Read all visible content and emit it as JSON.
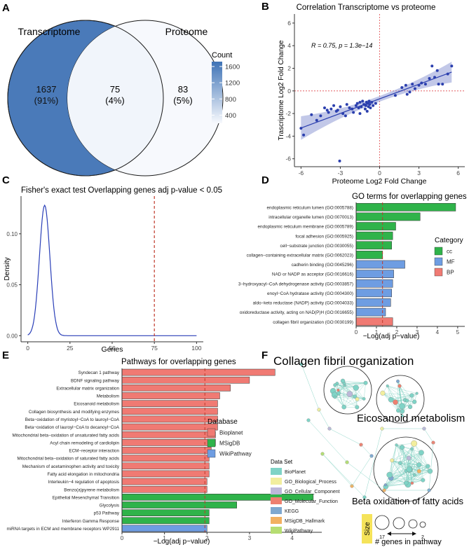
{
  "panel_labels": {
    "A": "A",
    "B": "B",
    "C": "C",
    "D": "D",
    "E": "E",
    "F": "F"
  },
  "chart_data": [
    {
      "panel": "A",
      "type": "venn",
      "sets": [
        "Transcriptome",
        "Proteome"
      ],
      "regions": [
        {
          "set": "Transcriptome only",
          "count": 1637,
          "pct": "(91%)",
          "color": "#4a7ab9"
        },
        {
          "set": "Both",
          "count": 75,
          "pct": "(4%)",
          "color": "#f1f5fb"
        },
        {
          "set": "Proteome only",
          "count": 83,
          "pct": "(5%)",
          "color": "#f7f9fd"
        }
      ],
      "legend": {
        "title": "Count",
        "ticks": [
          1600,
          1200,
          800,
          400
        ],
        "low_color": "#f7f9fd",
        "high_color": "#3f73b6"
      }
    },
    {
      "panel": "B",
      "type": "scatter",
      "title": "Correlation Transcriptome vs proteome",
      "xlabel": "Proteome Log2 Fold Change",
      "ylabel": "Trascriptome Log2 Fold Change",
      "xlim": [
        -6.5,
        6.5
      ],
      "ylim": [
        -6.7,
        6.8
      ],
      "xticks": [
        -6,
        -3,
        0,
        3,
        6
      ],
      "yticks": [
        -6,
        -4,
        -2,
        0,
        2,
        4,
        6
      ],
      "annotation": "R = 0.75, p = 1.3e−14",
      "fit": {
        "slope": 0.43,
        "intercept": -0.7
      },
      "points": [
        [
          -6,
          -3.3
        ],
        [
          -5.8,
          -3.9
        ],
        [
          -5.2,
          -2.1
        ],
        [
          -4.8,
          -2.6
        ],
        [
          -4.5,
          -2.2
        ],
        [
          -4.2,
          -1.5
        ],
        [
          -4,
          -1.7
        ],
        [
          -3.9,
          -1.9
        ],
        [
          -3.7,
          -1.6
        ],
        [
          -3.5,
          -1.3
        ],
        [
          -3.3,
          -1.8
        ],
        [
          -3.2,
          -1.7
        ],
        [
          -3.05,
          -6.2
        ],
        [
          -3,
          -1.4
        ],
        [
          -2.8,
          -2
        ],
        [
          -2.6,
          -2.2
        ],
        [
          -2.5,
          -1.2
        ],
        [
          -2.3,
          -1.5
        ],
        [
          -2.1,
          -1.6
        ],
        [
          -2,
          -1.9
        ],
        [
          -1.8,
          -1.3
        ],
        [
          -1.7,
          -1.1
        ],
        [
          -1.6,
          -1.5
        ],
        [
          -1.5,
          -1
        ],
        [
          -1.5,
          -2
        ],
        [
          -1.4,
          -1.4
        ],
        [
          -1.3,
          -0.9
        ],
        [
          -1.2,
          -1.2
        ],
        [
          -1.1,
          -1.6
        ],
        [
          -1.05,
          -1.3
        ],
        [
          -1,
          -1
        ],
        [
          -0.95,
          -1.8
        ],
        [
          -0.9,
          -1.1
        ],
        [
          -0.85,
          -1.4
        ],
        [
          -0.8,
          -0.9
        ],
        [
          -0.75,
          -1.2
        ],
        [
          -0.7,
          -1.5
        ],
        [
          -0.6,
          -1
        ],
        [
          -0.5,
          -1.3
        ],
        [
          -0.3,
          -1.1
        ],
        [
          1.2,
          -0.4
        ],
        [
          1.7,
          0.3
        ],
        [
          2,
          0.5
        ],
        [
          2.1,
          -0.3
        ],
        [
          2.3,
          -0.1
        ],
        [
          2.5,
          0.6
        ],
        [
          2.7,
          0.2
        ],
        [
          3,
          0.5
        ],
        [
          3.2,
          0.7
        ],
        [
          3.5,
          0.6
        ],
        [
          3.8,
          1.1
        ],
        [
          4,
          2.2
        ],
        [
          4.2,
          1.2
        ],
        [
          4.5,
          0.6
        ],
        [
          4.8,
          0.6
        ],
        [
          5.2,
          1.5
        ],
        [
          5.5,
          2.2
        ],
        [
          4.4,
          1.8
        ]
      ]
    },
    {
      "panel": "C",
      "type": "line",
      "title": "Fisher's exact test Overlapping genes adj p-value < 0.05",
      "xlabel": "Genes",
      "ylabel": "Density",
      "xlim": [
        -4,
        104
      ],
      "ylim": [
        -0.006,
        0.137
      ],
      "xticks": [
        0,
        25,
        50,
        75,
        100
      ],
      "yticks": [
        0,
        0.05,
        0.1
      ],
      "yticklabels": [
        "0.00",
        "0.05",
        "0.10"
      ],
      "density_peak_x": 10,
      "density_peak_y": 0.128,
      "density_sd": 3.1,
      "vline_x": 75
    },
    {
      "panel": "D",
      "type": "bar",
      "orientation": "horizontal",
      "title": "GO terms for overlapping genes",
      "xlabel": "−Log(adj p−value)",
      "xlim": [
        0,
        5.35
      ],
      "xticks": [
        0,
        1,
        2,
        3,
        4,
        5
      ],
      "vline_x": 1.3,
      "legend_title": "Category",
      "legend": [
        {
          "name": "cc",
          "color": "#2fb34a"
        },
        {
          "name": "MF",
          "color": "#6e9de2"
        },
        {
          "name": "BP",
          "color": "#f07a73"
        }
      ],
      "bars": [
        {
          "label": "endoplasmic reticulum lumen (GO:0005788)",
          "value": 4.9,
          "category": "cc"
        },
        {
          "label": "intracellular organelle lumen (GO:0070013)",
          "value": 3.15,
          "category": "cc"
        },
        {
          "label": "endoplasmic reticulum membrane (GO:0005789)",
          "value": 1.95,
          "category": "cc"
        },
        {
          "label": "focal adhesion (GO:0005925)",
          "value": 1.8,
          "category": "cc"
        },
        {
          "label": "cell−substrate junction (GO:0030055)",
          "value": 1.75,
          "category": "cc"
        },
        {
          "label": "collagen−containing extracellular matrix (GO:0062023)",
          "value": 1.3,
          "category": "cc"
        },
        {
          "label": "cadherin binding (GO:0045296)",
          "value": 2.4,
          "category": "MF"
        },
        {
          "label": "NAD or NADP as acceptor (GO:0016616)",
          "value": 1.85,
          "category": "MF"
        },
        {
          "label": "3−hydroxyacyl−CoA dehydrogenase activity (GO:0003857)",
          "value": 1.8,
          "category": "MF"
        },
        {
          "label": "enoyl−CoA hydratase activity (GO:0004300)",
          "value": 1.75,
          "category": "MF"
        },
        {
          "label": "aldo−keto reductase (NADP) activity (GO:0004033)",
          "value": 1.7,
          "category": "MF"
        },
        {
          "label": "oxidoreductase activity, acting on NAD(P)H (GO:0016655)",
          "value": 1.45,
          "category": "MF"
        },
        {
          "label": "collagen fibril organization (GO:0030199)",
          "value": 1.8,
          "category": "BP"
        }
      ]
    },
    {
      "panel": "E",
      "type": "bar",
      "orientation": "horizontal",
      "title": "Pathways for overlapping genes",
      "xlabel": "−Log(adj p−value)",
      "xlim": [
        0,
        4.7
      ],
      "xticks": [
        0,
        1,
        2,
        3,
        4
      ],
      "vline_x": 1.95,
      "legend_title": "Database",
      "legend": [
        {
          "name": "Bioplanet",
          "color": "#f07a73"
        },
        {
          "name": "MSigDB",
          "color": "#2fb34a"
        },
        {
          "name": "WikiPathway",
          "color": "#6e9de2"
        }
      ],
      "bars": [
        {
          "label": "Syndecan 1 pathway",
          "value": 3.6,
          "category": "Bioplanet"
        },
        {
          "label": "BDNF signaling pathway",
          "value": 3.0,
          "category": "Bioplanet"
        },
        {
          "label": "Extracellular matrix organization",
          "value": 2.55,
          "category": "Bioplanet"
        },
        {
          "label": "Metabolism",
          "value": 2.3,
          "category": "Bioplanet"
        },
        {
          "label": "Eicosanoid metabolism",
          "value": 2.25,
          "category": "Bioplanet"
        },
        {
          "label": "Collagen biosynthesis and modifying enzymes",
          "value": 2.25,
          "category": "Bioplanet"
        },
        {
          "label": "Beta−oxidation of myristoyl−CoA to lauroyl−CoA",
          "value": 2.25,
          "category": "Bioplanet"
        },
        {
          "label": "Beta−oxidation of lauroyl−CoA to decanoyl−CoA",
          "value": 2.25,
          "category": "Bioplanet"
        },
        {
          "label": "Mitochondrial beta−oxidation of unsaturated fatty acids",
          "value": 2.2,
          "category": "Bioplanet"
        },
        {
          "label": "Acyl chain remodeling of cardiolipin",
          "value": 2.2,
          "category": "Bioplanet"
        },
        {
          "label": "ECM−receptor interaction",
          "value": 2.1,
          "category": "Bioplanet"
        },
        {
          "label": "Mitochondrial beta−oxidation of saturated fatty acids",
          "value": 2.05,
          "category": "Bioplanet"
        },
        {
          "label": "Mechanism of acetaminophen activity and toxicity",
          "value": 2.05,
          "category": "Bioplanet"
        },
        {
          "label": "Fatty acid elongation in mitochondria",
          "value": 2.05,
          "category": "Bioplanet"
        },
        {
          "label": "Interleukin−4 regulation of apoptosis",
          "value": 2.0,
          "category": "Bioplanet"
        },
        {
          "label": "Benzo(a)pyrene metabolism",
          "value": 2.0,
          "category": "Bioplanet"
        },
        {
          "label": "Epithelial Mesenchymal Transition",
          "value": 4.5,
          "category": "MSigDB"
        },
        {
          "label": "Glycolysis",
          "value": 2.7,
          "category": "MSigDB"
        },
        {
          "label": "p53 Pathway",
          "value": 2.05,
          "category": "MSigDB"
        },
        {
          "label": "Interferon Gamma Response",
          "value": 2.05,
          "category": "MSigDB"
        },
        {
          "label": "miRNA targets in ECM and membrane receptors WP2911",
          "value": 2.0,
          "category": "WikiPathway"
        }
      ]
    },
    {
      "panel": "F",
      "type": "network",
      "cluster_labels": [
        "Collagen fibril organization",
        "Eicosanoid metabolism",
        "Beta oxidation of fatty acids"
      ],
      "legend_title": "Data Set",
      "legend": [
        {
          "name": "BioPlanet",
          "color": "#7fd3c6"
        },
        {
          "name": "GO_Biological_Process",
          "color": "#f2ee9e"
        },
        {
          "name": "GO_Cellular_Component",
          "color": "#bdb8d9"
        },
        {
          "name": "GO_Molecular_Function",
          "color": "#ee8070"
        },
        {
          "name": "KEGG",
          "color": "#7fa8cf"
        },
        {
          "name": "MSigDB_Hallmark",
          "color": "#f2b060"
        },
        {
          "name": "WikiPathway",
          "color": "#b6dd72"
        }
      ],
      "size_legend": {
        "label": "Size",
        "caption": "# genes in pathway",
        "max": 17,
        "min": 2
      }
    }
  ]
}
